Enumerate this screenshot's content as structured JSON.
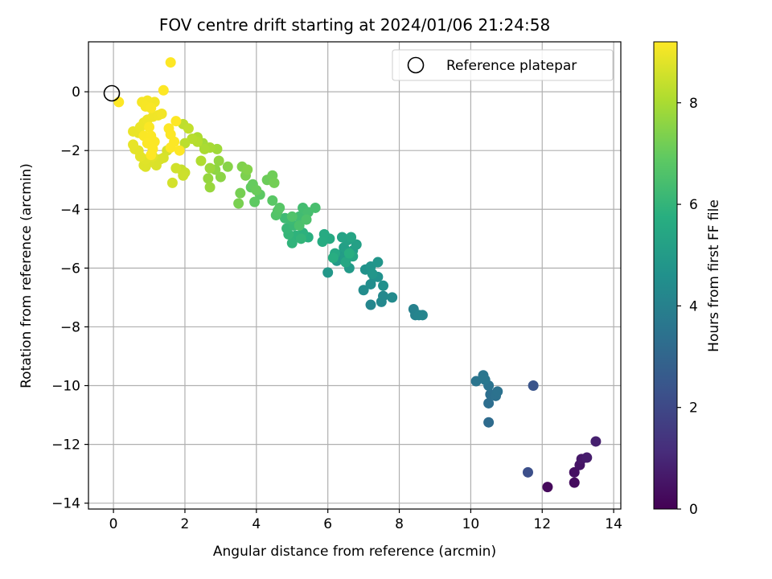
{
  "chart_data": {
    "type": "scatter",
    "title": "FOV centre drift starting at 2024/01/06 21:24:58",
    "xlabel": "Angular distance from reference (arcmin)",
    "ylabel": "Rotation from reference (arcmin)",
    "xlim": [
      -0.7,
      14.2
    ],
    "ylim": [
      -14.2,
      1.7
    ],
    "xticks": [
      0,
      2,
      4,
      6,
      8,
      10,
      12,
      14
    ],
    "yticks": [
      0,
      -2,
      -4,
      -6,
      -8,
      -10,
      -12,
      -14
    ],
    "xtick_labels": [
      "0",
      "2",
      "4",
      "6",
      "8",
      "10",
      "12",
      "14"
    ],
    "ytick_labels": [
      "0",
      "−2",
      "−4",
      "−6",
      "−8",
      "−10",
      "−12",
      "−14"
    ],
    "grid": true,
    "colormap": "viridis",
    "colorbar": {
      "label": "Hours from first FF file",
      "range": [
        0,
        9.2
      ],
      "ticks": [
        0,
        2,
        4,
        6,
        8
      ],
      "tick_labels": [
        "0",
        "2",
        "4",
        "6",
        "8"
      ]
    },
    "legend": {
      "placement": "top-right",
      "entries": [
        "Reference platepar"
      ]
    },
    "reference_point": {
      "x": 0,
      "y": 0,
      "label": "Reference platepar"
    },
    "points": [
      [
        12.15,
        -13.45,
        0.2
      ],
      [
        12.9,
        -13.3,
        0.3
      ],
      [
        12.9,
        -12.95,
        0.4
      ],
      [
        13.05,
        -12.7,
        0.5
      ],
      [
        13.1,
        -12.5,
        0.6
      ],
      [
        13.25,
        -12.45,
        0.7
      ],
      [
        13.5,
        -11.9,
        0.8
      ],
      [
        11.6,
        -12.95,
        2.2
      ],
      [
        11.75,
        -10.0,
        2.4
      ],
      [
        10.5,
        -11.25,
        3.2
      ],
      [
        10.5,
        -10.6,
        3.3
      ],
      [
        10.55,
        -10.3,
        3.35
      ],
      [
        10.7,
        -10.35,
        3.4
      ],
      [
        10.75,
        -10.2,
        3.45
      ],
      [
        10.5,
        -10.0,
        3.5
      ],
      [
        10.15,
        -9.85,
        3.55
      ],
      [
        10.35,
        -9.65,
        3.6
      ],
      [
        10.4,
        -9.8,
        3.62
      ],
      [
        8.4,
        -7.4,
        4.0
      ],
      [
        8.45,
        -7.6,
        4.05
      ],
      [
        8.55,
        -7.6,
        4.1
      ],
      [
        8.65,
        -7.6,
        4.15
      ],
      [
        7.2,
        -7.25,
        4.2
      ],
      [
        7.5,
        -7.15,
        4.25
      ],
      [
        7.55,
        -6.95,
        4.3
      ],
      [
        7.8,
        -7.0,
        4.35
      ],
      [
        7.0,
        -6.75,
        4.4
      ],
      [
        7.2,
        -6.55,
        4.45
      ],
      [
        7.3,
        -6.3,
        4.5
      ],
      [
        7.55,
        -6.6,
        4.55
      ],
      [
        7.4,
        -6.3,
        4.6
      ],
      [
        7.05,
        -6.05,
        4.65
      ],
      [
        7.2,
        -5.95,
        4.7
      ],
      [
        7.4,
        -5.8,
        4.75
      ],
      [
        7.25,
        -6.2,
        4.8
      ],
      [
        6.0,
        -6.15,
        4.85
      ],
      [
        6.25,
        -5.75,
        4.9
      ],
      [
        6.6,
        -6.0,
        4.95
      ],
      [
        6.35,
        -5.55,
        5.0
      ],
      [
        6.5,
        -5.6,
        5.05
      ],
      [
        6.7,
        -5.4,
        5.1
      ],
      [
        6.45,
        -5.3,
        5.15
      ],
      [
        6.8,
        -5.2,
        5.2
      ],
      [
        6.55,
        -5.05,
        5.25
      ],
      [
        6.4,
        -4.95,
        5.3
      ],
      [
        6.65,
        -4.95,
        5.35
      ],
      [
        6.7,
        -5.6,
        5.4
      ],
      [
        6.5,
        -5.8,
        5.45
      ],
      [
        6.2,
        -5.5,
        5.5
      ],
      [
        6.05,
        -5.0,
        5.55
      ],
      [
        5.9,
        -4.85,
        5.6
      ],
      [
        5.85,
        -5.1,
        5.65
      ],
      [
        6.15,
        -5.65,
        5.7
      ],
      [
        6.6,
        -5.5,
        5.75
      ],
      [
        5.45,
        -4.95,
        5.8
      ],
      [
        5.3,
        -4.8,
        5.85
      ],
      [
        5.1,
        -4.9,
        5.9
      ],
      [
        5.0,
        -5.15,
        5.95
      ],
      [
        5.25,
        -5.0,
        6.0
      ],
      [
        4.9,
        -4.85,
        6.05
      ],
      [
        4.85,
        -4.65,
        6.1
      ],
      [
        5.05,
        -4.55,
        6.15
      ],
      [
        4.95,
        -4.35,
        6.2
      ],
      [
        4.8,
        -4.3,
        6.25
      ],
      [
        5.2,
        -4.25,
        6.3
      ],
      [
        5.3,
        -3.95,
        6.35
      ],
      [
        5.45,
        -4.1,
        6.4
      ],
      [
        5.65,
        -3.95,
        6.45
      ],
      [
        5.2,
        -4.55,
        6.5
      ],
      [
        5.4,
        -4.35,
        6.55
      ],
      [
        5.0,
        -4.25,
        6.6
      ],
      [
        4.55,
        -4.2,
        6.65
      ],
      [
        4.6,
        -4.05,
        6.7
      ],
      [
        4.65,
        -3.95,
        6.75
      ],
      [
        4.45,
        -3.7,
        6.8
      ],
      [
        4.1,
        -3.5,
        6.85
      ],
      [
        3.95,
        -3.75,
        6.9
      ],
      [
        3.85,
        -3.25,
        6.95
      ],
      [
        3.9,
        -3.15,
        7.0
      ],
      [
        4.0,
        -3.35,
        7.05
      ],
      [
        4.3,
        -3.0,
        7.1
      ],
      [
        4.45,
        -2.85,
        7.15
      ],
      [
        4.5,
        -3.1,
        7.2
      ],
      [
        3.55,
        -3.45,
        7.25
      ],
      [
        3.5,
        -3.8,
        7.3
      ],
      [
        3.7,
        -2.85,
        7.35
      ],
      [
        3.6,
        -2.55,
        7.4
      ],
      [
        3.75,
        -2.65,
        7.45
      ],
      [
        3.2,
        -2.55,
        7.5
      ],
      [
        3.0,
        -2.9,
        7.55
      ],
      [
        2.85,
        -2.65,
        7.6
      ],
      [
        2.95,
        -2.35,
        7.65
      ],
      [
        2.65,
        -2.95,
        7.7
      ],
      [
        2.7,
        -3.25,
        7.75
      ],
      [
        2.7,
        -2.6,
        7.8
      ],
      [
        2.9,
        -1.95,
        7.85
      ],
      [
        2.5,
        -1.75,
        7.9
      ],
      [
        2.7,
        -1.9,
        7.95
      ],
      [
        2.55,
        -1.95,
        8.0
      ],
      [
        2.35,
        -1.55,
        8.05
      ],
      [
        2.45,
        -2.35,
        8.1
      ],
      [
        2.35,
        -1.7,
        8.15
      ],
      [
        2.2,
        -1.6,
        8.2
      ],
      [
        2.0,
        -1.75,
        8.25
      ],
      [
        1.95,
        -1.1,
        8.3
      ],
      [
        2.1,
        -1.25,
        8.35
      ],
      [
        1.9,
        -2.65,
        8.4
      ],
      [
        2.0,
        -2.75,
        8.45
      ],
      [
        1.95,
        -2.85,
        8.5
      ],
      [
        1.75,
        -2.6,
        8.55
      ],
      [
        1.65,
        -3.1,
        8.6
      ],
      [
        1.5,
        -2.0,
        8.62
      ],
      [
        1.4,
        -2.25,
        8.65
      ],
      [
        1.3,
        -2.3,
        8.68
      ],
      [
        1.2,
        -2.5,
        8.7
      ],
      [
        1.0,
        -2.4,
        8.72
      ],
      [
        0.9,
        -2.55,
        8.74
      ],
      [
        0.85,
        -2.5,
        8.76
      ],
      [
        0.9,
        -2.3,
        8.78
      ],
      [
        1.1,
        -2.2,
        8.8
      ],
      [
        0.7,
        -2.0,
        8.82
      ],
      [
        0.75,
        -2.2,
        8.84
      ],
      [
        0.6,
        -1.95,
        8.86
      ],
      [
        0.55,
        -1.8,
        8.88
      ],
      [
        0.7,
        -1.4,
        8.9
      ],
      [
        0.55,
        -1.35,
        8.92
      ],
      [
        0.75,
        -1.2,
        8.94
      ],
      [
        0.85,
        -1.05,
        8.96
      ],
      [
        0.95,
        -0.95,
        8.98
      ],
      [
        1.1,
        -0.85,
        9.0
      ],
      [
        1.25,
        -0.8,
        9.02
      ],
      [
        1.35,
        -0.75,
        9.04
      ],
      [
        1.15,
        -0.35,
        9.06
      ],
      [
        0.95,
        -0.3,
        9.08
      ],
      [
        0.8,
        -0.35,
        9.1
      ],
      [
        0.9,
        -0.5,
        9.12
      ],
      [
        1.05,
        -0.55,
        9.14
      ],
      [
        1.0,
        -1.2,
        9.15
      ],
      [
        0.85,
        -1.5,
        9.16
      ],
      [
        1.05,
        -1.5,
        9.17
      ],
      [
        1.15,
        -1.7,
        9.17
      ],
      [
        0.95,
        -1.75,
        9.18
      ],
      [
        1.1,
        -1.95,
        9.18
      ],
      [
        1.55,
        -1.25,
        9.18
      ],
      [
        1.6,
        -1.45,
        9.19
      ],
      [
        1.7,
        -1.7,
        9.19
      ],
      [
        1.6,
        -1.9,
        9.19
      ],
      [
        1.85,
        -2.0,
        9.2
      ],
      [
        1.75,
        -1.0,
        9.2
      ],
      [
        1.4,
        0.05,
        9.2
      ],
      [
        1.6,
        1.0,
        9.2
      ],
      [
        0.15,
        -0.35,
        9.2
      ],
      [
        1.05,
        -2.15,
        9.2
      ]
    ]
  }
}
